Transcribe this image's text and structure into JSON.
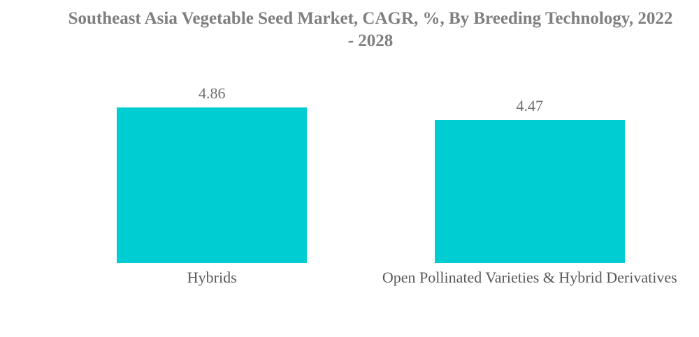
{
  "page": {
    "background_color": "#ffffff"
  },
  "header": {
    "line1": "Southeast Asia Vegetable Seed Market, CAGR, %, By Breeding Technology, 2022",
    "line2": "- 2028",
    "color": "#7f7f7f"
  },
  "chart_data": {
    "type": "bar",
    "title": "Southeast Asia Vegetable Seed Market, CAGR, %, By Breeding Technology, 2022 - 2028",
    "categories": [
      "Hybrids",
      "Open Pollinated Varieties & Hybrid Derivatives"
    ],
    "values": [
      4.86,
      4.47
    ],
    "data_labels": [
      "4.86",
      "4.47"
    ],
    "xlabel": "",
    "ylabel": "",
    "ylim": [
      0,
      4.86
    ],
    "grid": false,
    "legend": false,
    "axes_hidden": true,
    "data_label_position": "top",
    "bar_color": "#00cdd1",
    "data_label_color": "#6f6f6f",
    "category_label_color": "#595959"
  }
}
